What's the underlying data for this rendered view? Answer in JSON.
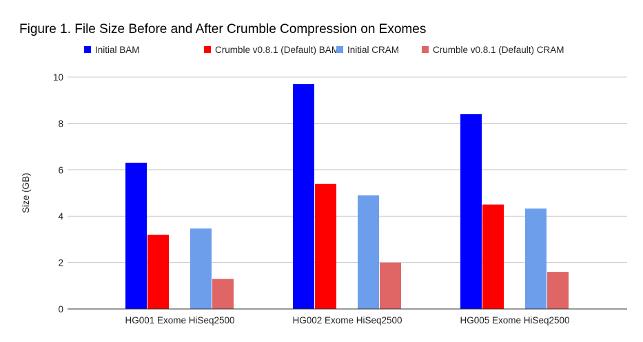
{
  "chart_data": {
    "type": "bar",
    "title": "Figure 1. File Size Before and After Crumble Compression on Exomes",
    "xlabel": "",
    "ylabel": "Size (GB)",
    "ylim": [
      0,
      10
    ],
    "yticks": [
      0,
      2,
      4,
      6,
      8,
      10
    ],
    "grid": true,
    "legend_position": "top",
    "categories": [
      "HG001 Exome HiSeq2500",
      "HG002 Exome HiSeq2500",
      "HG005 Exome HiSeq2500"
    ],
    "series": [
      {
        "name": "Initial BAM",
        "color": "#0000ff",
        "values": [
          6.3,
          9.7,
          8.4
        ]
      },
      {
        "name": "Crumble v0.8.1 (Default) BAM",
        "color": "#ff0000",
        "values": [
          3.2,
          5.4,
          4.5
        ]
      },
      {
        "name": "Initial CRAM",
        "color": "#6d9eeb",
        "values": [
          3.47,
          4.9,
          4.33
        ]
      },
      {
        "name": "Crumble v0.8.1 (Default) CRAM",
        "color": "#e06666",
        "values": [
          1.3,
          2.0,
          1.6
        ]
      }
    ]
  }
}
